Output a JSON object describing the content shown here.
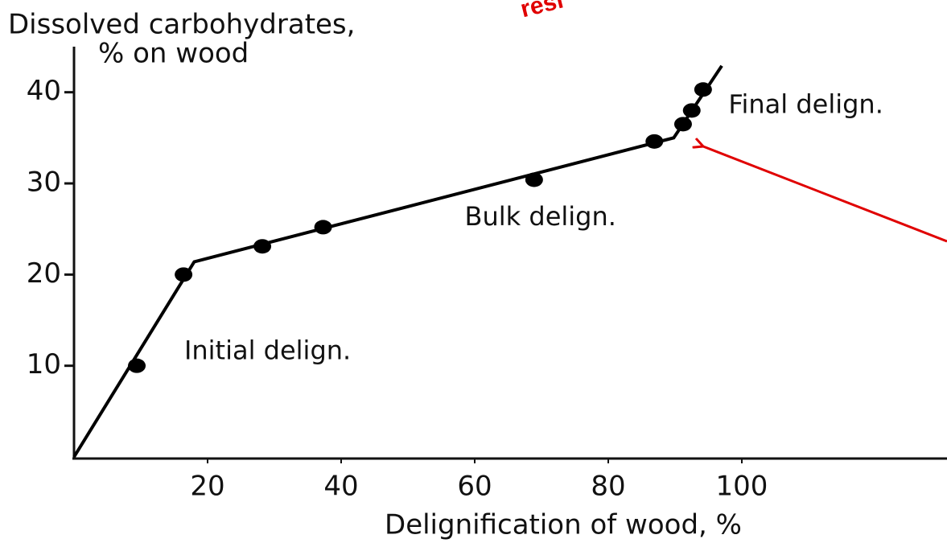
{
  "chart_data": {
    "type": "scatter",
    "y_label_lines": [
      "Dissolved carbohydrates,",
      "% on wood"
    ],
    "x_label": "Delignification of wood, %",
    "x": [
      9.4,
      16.4,
      28.2,
      37.3,
      68.9,
      86.9,
      91.2,
      92.5,
      94.2
    ],
    "values": [
      10,
      20,
      23.1,
      25.2,
      30.4,
      34.6,
      36.5,
      38.0,
      40.3
    ],
    "color": "#000000",
    "fit_line": {
      "x": [
        0,
        18,
        89.8,
        97
      ],
      "y": [
        0,
        21.4,
        35.0,
        42.9
      ]
    },
    "annotations": [
      {
        "text": "Initial delign.",
        "x": 16.5,
        "y": 11.5
      },
      {
        "text": "Bulk delign.",
        "x": 58.5,
        "y": 26.2
      },
      {
        "text": "Final delign.",
        "x": 98,
        "y": 38.5
      }
    ],
    "callout": "resi",
    "xlim": [
      0,
      130
    ],
    "ylim": [
      0,
      45
    ],
    "xticks": [
      20,
      40,
      60,
      80,
      100
    ],
    "yticks": [
      10,
      20,
      30,
      40
    ]
  }
}
